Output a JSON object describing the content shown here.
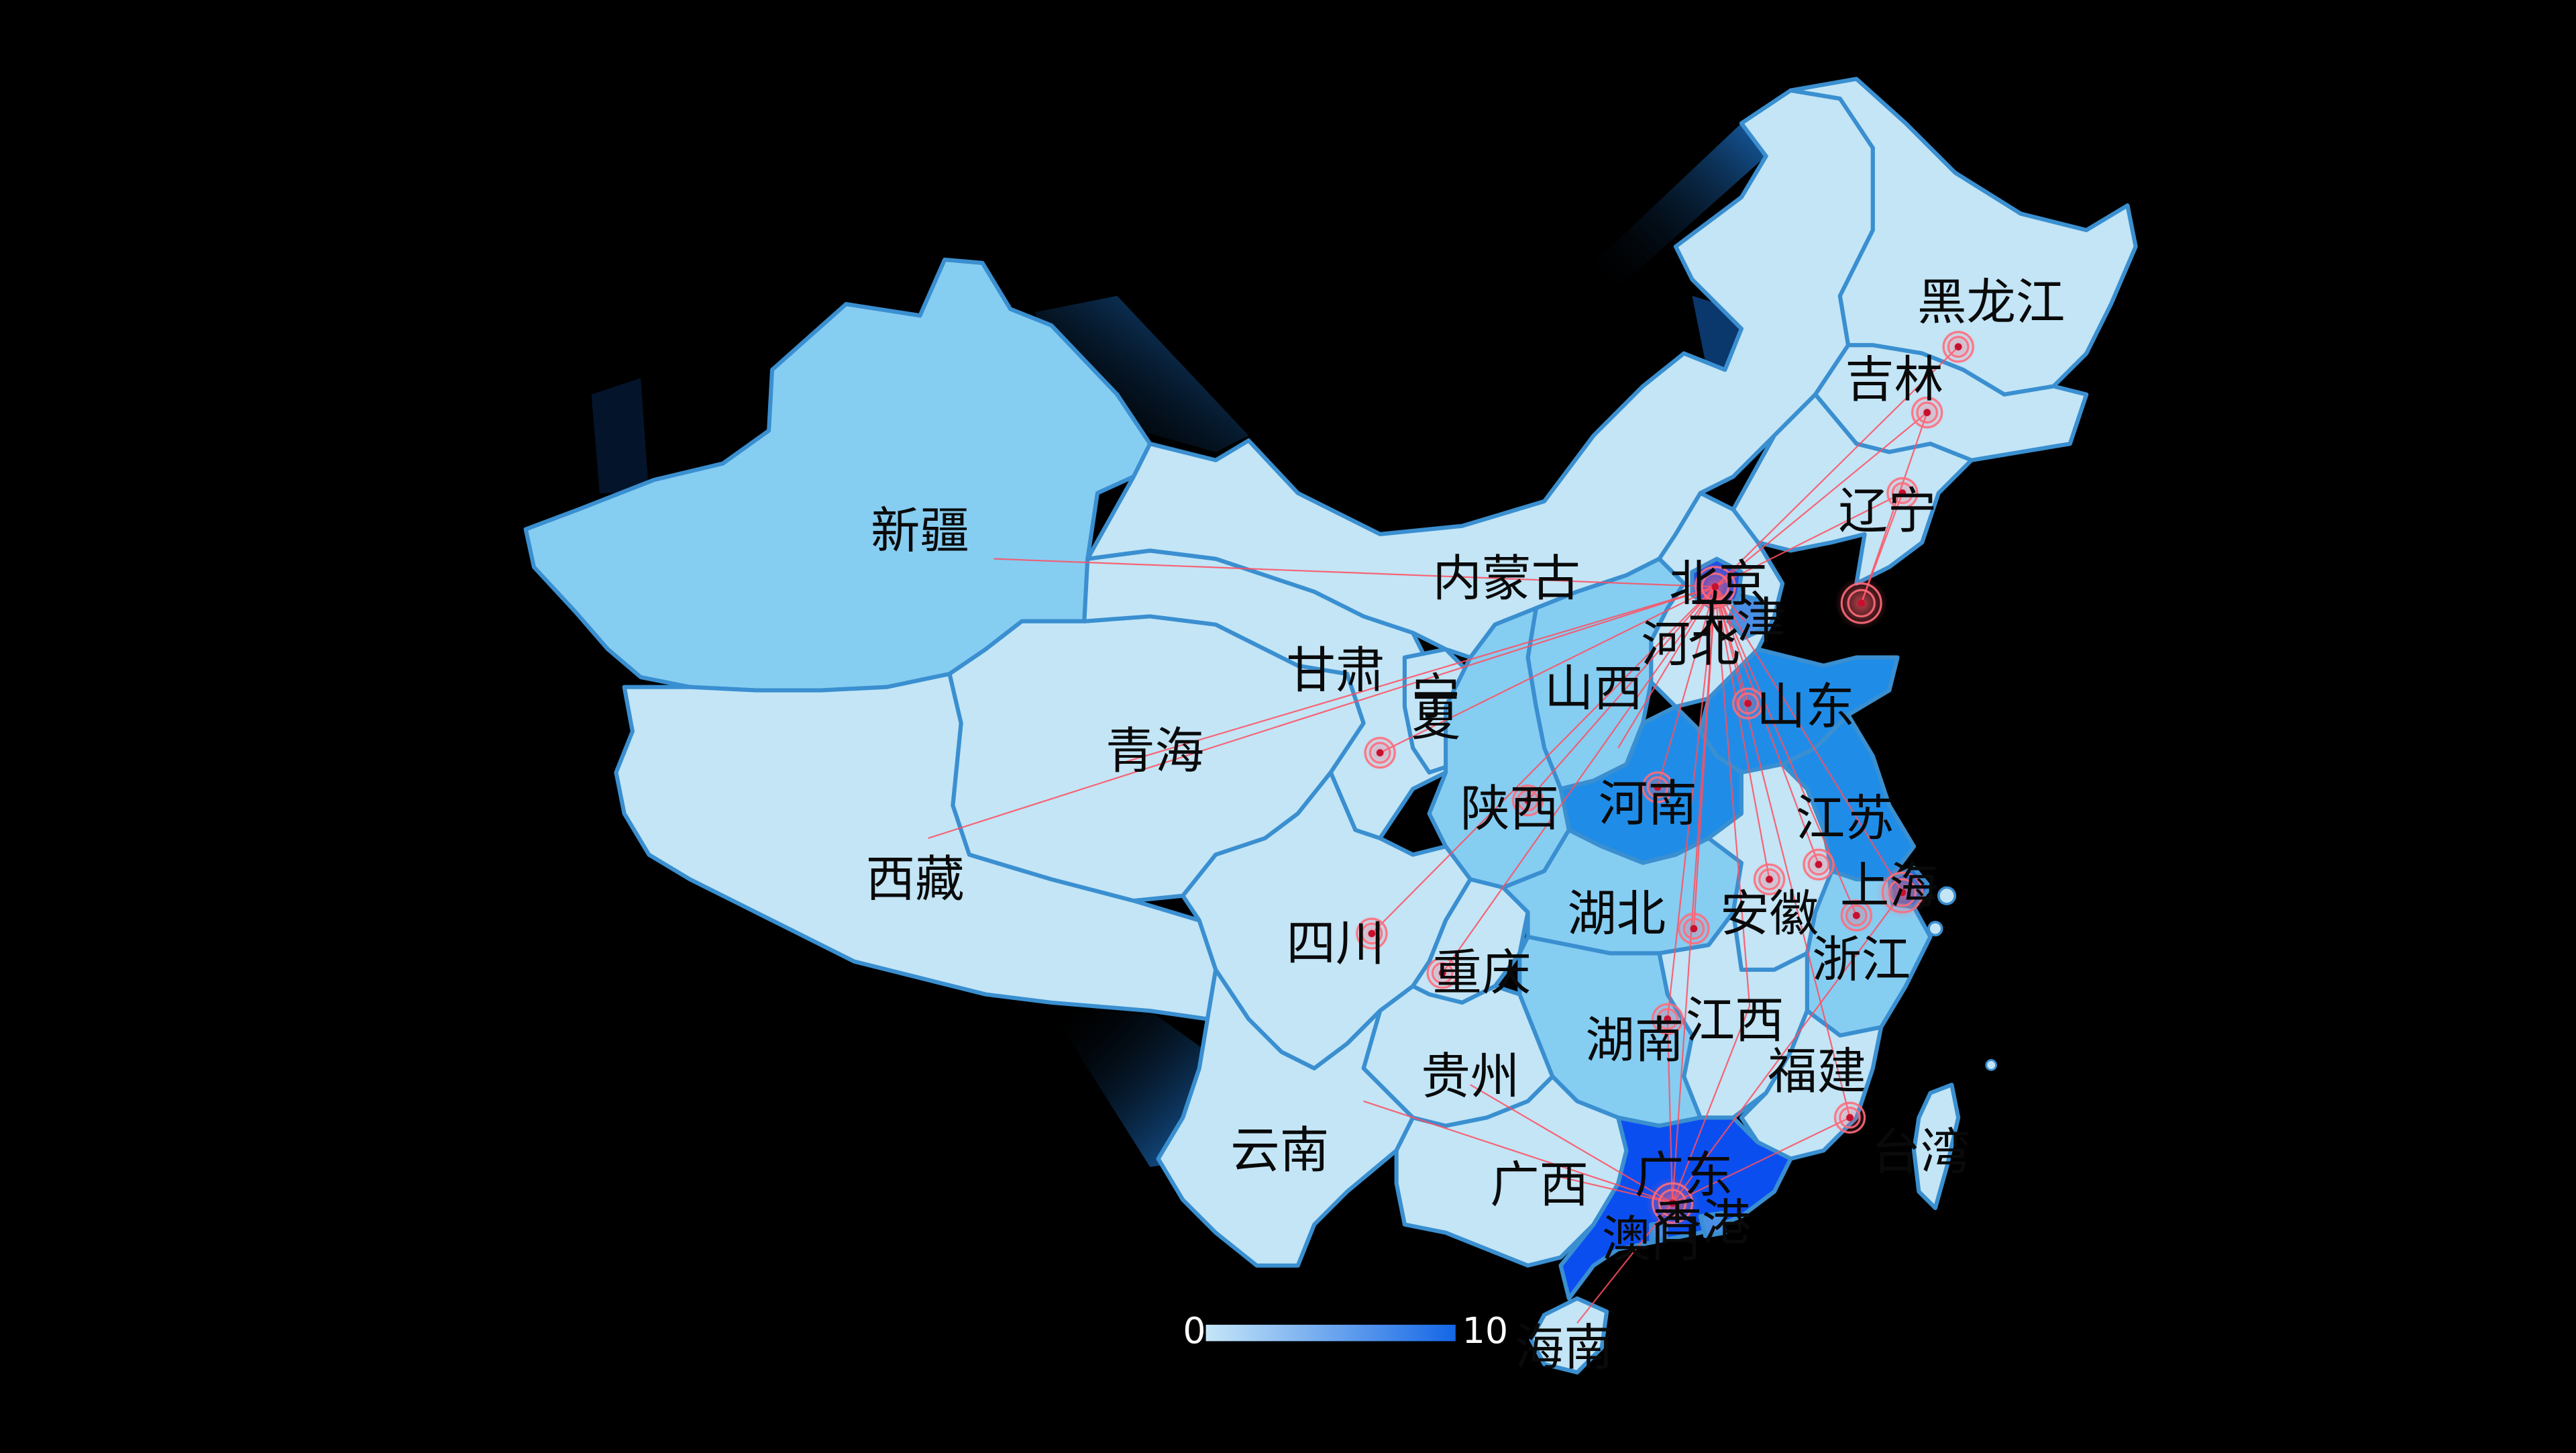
{
  "visual_map": {
    "min_label": "0",
    "max_label": "10",
    "color_low": "#c5e6f7",
    "color_high": "#1466e6"
  },
  "colors": {
    "background": "#000000",
    "border": "#3a8fd0",
    "flow_line": "#ff4d5e",
    "effect_ring": "#ff6b7a",
    "region_light": "#c3e5f6",
    "region_mid": "#86cdf2",
    "region_deep": "#1f8de8",
    "region_deeper": "#0e6fe6",
    "region_hot": "#0b4ef0",
    "sea_glow": "#0e4f9a"
  },
  "hub_north": "北京",
  "hub_south": "广东",
  "provinces": [
    {
      "name": "新疆",
      "value": 4
    },
    {
      "name": "西藏",
      "value": 1
    },
    {
      "name": "青海",
      "value": 1
    },
    {
      "name": "甘肃",
      "value": 1
    },
    {
      "name": "宁夏",
      "value": 1
    },
    {
      "name": "内蒙古",
      "value": 1
    },
    {
      "name": "黑龙江",
      "value": 1
    },
    {
      "name": "吉林",
      "value": 1
    },
    {
      "name": "辽宁",
      "value": 2
    },
    {
      "name": "北京",
      "value": 9
    },
    {
      "name": "天津",
      "value": 5
    },
    {
      "name": "河北",
      "value": 3
    },
    {
      "name": "山西",
      "value": 3
    },
    {
      "name": "山东",
      "value": 7
    },
    {
      "name": "河南",
      "value": 7
    },
    {
      "name": "陕西",
      "value": 2
    },
    {
      "name": "四川",
      "value": 1
    },
    {
      "name": "重庆",
      "value": 1
    },
    {
      "name": "湖北",
      "value": 2
    },
    {
      "name": "安徽",
      "value": 1
    },
    {
      "name": "江苏",
      "value": 5
    },
    {
      "name": "上海",
      "value": 6
    },
    {
      "name": "浙江",
      "value": 4
    },
    {
      "name": "江西",
      "value": 2
    },
    {
      "name": "湖南",
      "value": 3
    },
    {
      "name": "福建",
      "value": 2
    },
    {
      "name": "贵州",
      "value": 1
    },
    {
      "name": "云南",
      "value": 1
    },
    {
      "name": "广西",
      "value": 1
    },
    {
      "name": "广东",
      "value": 9
    },
    {
      "name": "香港",
      "value": 1
    },
    {
      "name": "澳门",
      "value": 1
    },
    {
      "name": "台湾",
      "value": 1
    },
    {
      "name": "海南",
      "value": 1
    }
  ],
  "flows_from_north": [
    "新疆",
    "西藏",
    "青海",
    "甘肃",
    "四川",
    "重庆",
    "陕西",
    "山西",
    "河北",
    "天津",
    "辽宁",
    "吉林",
    "黑龙江",
    "山东",
    "河南",
    "湖北",
    "安徽",
    "江苏",
    "上海",
    "浙江",
    "江西",
    "湖南",
    "福建",
    "广东"
  ],
  "flows_from_south": [
    "云南",
    "贵州",
    "广西",
    "福建",
    "湖南",
    "江西",
    "上海",
    "海南"
  ]
}
